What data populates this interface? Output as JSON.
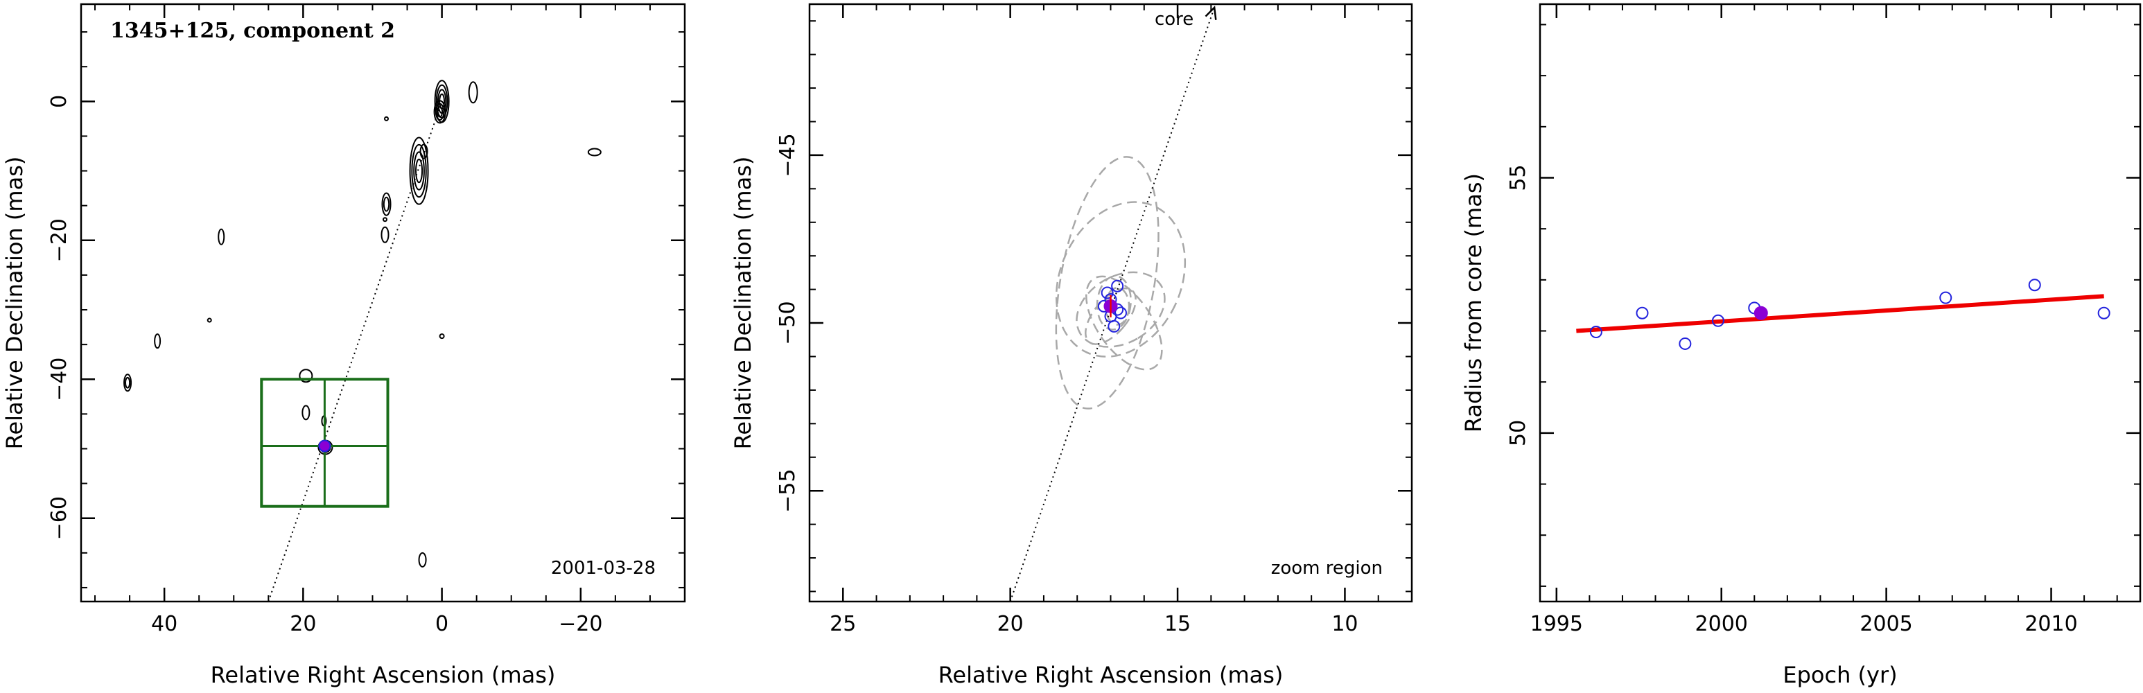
{
  "colors": {
    "frame": "#000000",
    "contour": "#000000",
    "zoom_box": "#1a6e1a",
    "component": "#8a00d4",
    "open_marker": "#2222dd",
    "fit_line": "#ee0000",
    "ellipse": "#a8a8a8"
  },
  "chart_data": [
    {
      "type": "scatter",
      "panel": "map",
      "title": "1345+125, component 2",
      "annotation": "2001-03-28",
      "xlabel": "Relative Right Ascension (mas)",
      "ylabel": "Relative Declination (mas)",
      "xlim": [
        52,
        -35
      ],
      "ylim": [
        -72,
        14
      ],
      "xticks": [
        40,
        20,
        0,
        -20
      ],
      "xtick_labels": [
        "40",
        "20",
        "0",
        "−20"
      ],
      "yticks": [
        0,
        -20,
        -40,
        -60
      ],
      "ytick_labels": [
        "0",
        "−20",
        "−40",
        "−60"
      ],
      "contours": [
        {
          "x": 0,
          "y": 0,
          "a": 1.0,
          "b": 3.0,
          "n": 4
        },
        {
          "x": 0.3,
          "y": -1.5,
          "a": 0.8,
          "b": 1.6,
          "n": 3
        },
        {
          "x": -4.5,
          "y": 1.3,
          "a": 0.6,
          "b": 1.5,
          "n": 1
        },
        {
          "x": 3.3,
          "y": -10.0,
          "a": 1.3,
          "b": 4.8,
          "n": 4
        },
        {
          "x": 2.6,
          "y": -7.2,
          "a": 0.5,
          "b": 1.0,
          "n": 1
        },
        {
          "x": 8.0,
          "y": -14.8,
          "a": 0.6,
          "b": 1.6,
          "n": 2
        },
        {
          "x": 8.2,
          "y": -19.2,
          "a": 0.5,
          "b": 1.1,
          "n": 1
        },
        {
          "x": 31.8,
          "y": -19.5,
          "a": 0.4,
          "b": 1.1,
          "n": 1
        },
        {
          "x": 41.0,
          "y": -34.5,
          "a": 0.4,
          "b": 1.0,
          "n": 1
        },
        {
          "x": 45.3,
          "y": -40.5,
          "a": 0.5,
          "b": 1.2,
          "n": 2
        },
        {
          "x": 19.6,
          "y": -39.5,
          "a": 0.9,
          "b": 0.9,
          "n": 1
        },
        {
          "x": 19.6,
          "y": -44.8,
          "a": 0.5,
          "b": 1.0,
          "n": 1
        },
        {
          "x": 17.0,
          "y": -46.0,
          "a": 0.3,
          "b": 0.7,
          "n": 1
        },
        {
          "x": 16.8,
          "y": -49.8,
          "a": 1.0,
          "b": 1.0,
          "n": 3
        },
        {
          "x": 2.8,
          "y": -66.0,
          "a": 0.5,
          "b": 1.0,
          "n": 1
        },
        {
          "x": -22.0,
          "y": -7.3,
          "a": 0.9,
          "b": 0.5,
          "n": 1
        },
        {
          "x": 0.0,
          "y": -33.8,
          "a": 0.3,
          "b": 0.3,
          "n": 1
        },
        {
          "x": 8.2,
          "y": -17.0,
          "a": 0.25,
          "b": 0.25,
          "n": 1
        },
        {
          "x": 33.5,
          "y": -31.5,
          "a": 0.25,
          "b": 0.25,
          "n": 1
        },
        {
          "x": 8.0,
          "y": -2.5,
          "a": 0.25,
          "b": 0.25,
          "n": 1
        }
      ],
      "jet_line": {
        "x": [
          25.0,
          0.0
        ],
        "y": [
          -72.0,
          0.0
        ]
      },
      "component": {
        "x": 16.9,
        "y": -49.6
      },
      "zoom_box": {
        "x": [
          26.0,
          7.8
        ],
        "y": [
          -40.0,
          -58.3
        ],
        "cross": {
          "x": 16.9,
          "y": -49.6
        }
      }
    },
    {
      "type": "scatter",
      "panel": "zoom",
      "annotation": "zoom region",
      "core_label": "core",
      "xlabel": "Relative Right Ascension (mas)",
      "ylabel": "Relative Declination (mas)",
      "xlim": [
        26,
        8
      ],
      "ylim": [
        -58.3,
        -40.5
      ],
      "xticks": [
        25,
        20,
        15,
        10
      ],
      "xtick_labels": [
        "25",
        "20",
        "15",
        "10"
      ],
      "yticks": [
        -45,
        -50,
        -55
      ],
      "ytick_labels": [
        "−45",
        "−50",
        "−55"
      ],
      "jet_line": {
        "x": [
          20.0,
          13.9
        ],
        "y": [
          -58.3,
          -40.6
        ]
      },
      "ellipses": [
        {
          "x": 17.1,
          "y": -48.8,
          "a": 3.8,
          "b": 1.4,
          "pa": 10
        },
        {
          "x": 16.7,
          "y": -48.7,
          "a": 2.4,
          "b": 1.8,
          "pa": 25
        },
        {
          "x": 16.7,
          "y": -49.6,
          "a": 1.4,
          "b": 1.0,
          "pa": 60
        },
        {
          "x": 16.6,
          "y": -50.0,
          "a": 1.6,
          "b": 0.8,
          "pa": -35
        },
        {
          "x": 16.9,
          "y": -49.4,
          "a": 0.8,
          "b": 0.5,
          "pa": 5
        },
        {
          "x": 17.0,
          "y": -49.8,
          "a": 1.0,
          "b": 0.5,
          "pa": 40
        },
        {
          "x": 16.8,
          "y": -49.5,
          "a": 0.55,
          "b": 0.35,
          "pa": 0
        }
      ],
      "points": [
        {
          "x": 17.1,
          "y": -49.1
        },
        {
          "x": 16.8,
          "y": -48.9
        },
        {
          "x": 17.0,
          "y": -49.8
        },
        {
          "x": 16.7,
          "y": -49.7
        },
        {
          "x": 16.9,
          "y": -50.1
        },
        {
          "x": 17.2,
          "y": -49.5
        },
        {
          "x": 17.0,
          "y": -49.3
        },
        {
          "x": 16.8,
          "y": -49.6
        }
      ],
      "current": {
        "x": 17.0,
        "y": -49.5
      }
    },
    {
      "type": "scatter",
      "panel": "radius",
      "xlabel": "Epoch (yr)",
      "ylabel": "Radius from core (mas)",
      "xlim": [
        1994.5,
        2012.7
      ],
      "ylim": [
        46.7,
        58.4
      ],
      "xticks": [
        1995,
        2000,
        2005,
        2010
      ],
      "xtick_labels": [
        "1995",
        "2000",
        "2005",
        "2010"
      ],
      "yticks": [
        50,
        55
      ],
      "ytick_labels": [
        "50",
        "55"
      ],
      "points": [
        {
          "x": 1996.2,
          "y": 51.98
        },
        {
          "x": 1997.6,
          "y": 52.35
        },
        {
          "x": 1998.9,
          "y": 51.75
        },
        {
          "x": 1999.9,
          "y": 52.2
        },
        {
          "x": 2001.0,
          "y": 52.45
        },
        {
          "x": 2006.8,
          "y": 52.65
        },
        {
          "x": 2009.5,
          "y": 52.9
        },
        {
          "x": 2011.6,
          "y": 52.35
        }
      ],
      "current": {
        "x": 2001.2,
        "y": 52.35
      },
      "fit": {
        "x": [
          1995.6,
          2011.6
        ],
        "y": [
          52.0,
          52.68
        ]
      }
    }
  ]
}
